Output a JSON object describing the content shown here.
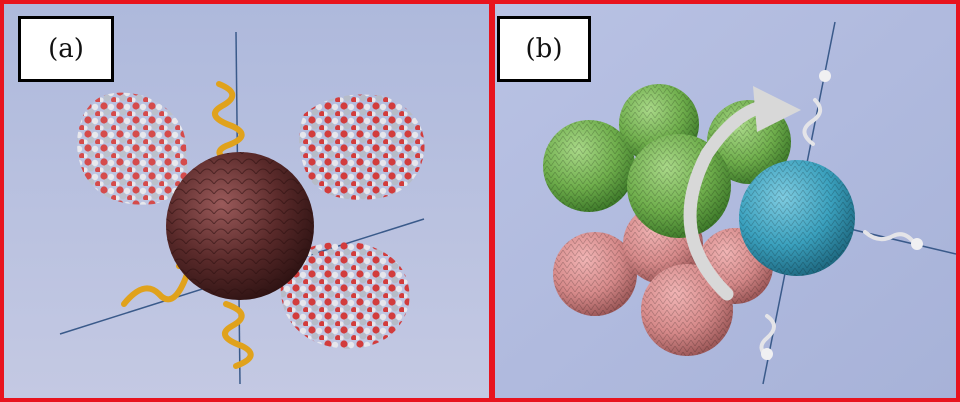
{
  "panels": [
    {
      "label": "(a)"
    },
    {
      "label": "(b)"
    }
  ],
  "colors": {
    "frame": "#e8141e",
    "background": "#b3bfe0",
    "core_sphere": "#5a2a2a",
    "protein_red": "#d23c3c",
    "protein_white": "#e6e6ec",
    "helix": "#e0a21c",
    "green_sphere": "#7dbb5a",
    "pink_sphere": "#d98a8a",
    "teal_sphere": "#3aa0bd",
    "arrow": "#d8d8d8"
  }
}
